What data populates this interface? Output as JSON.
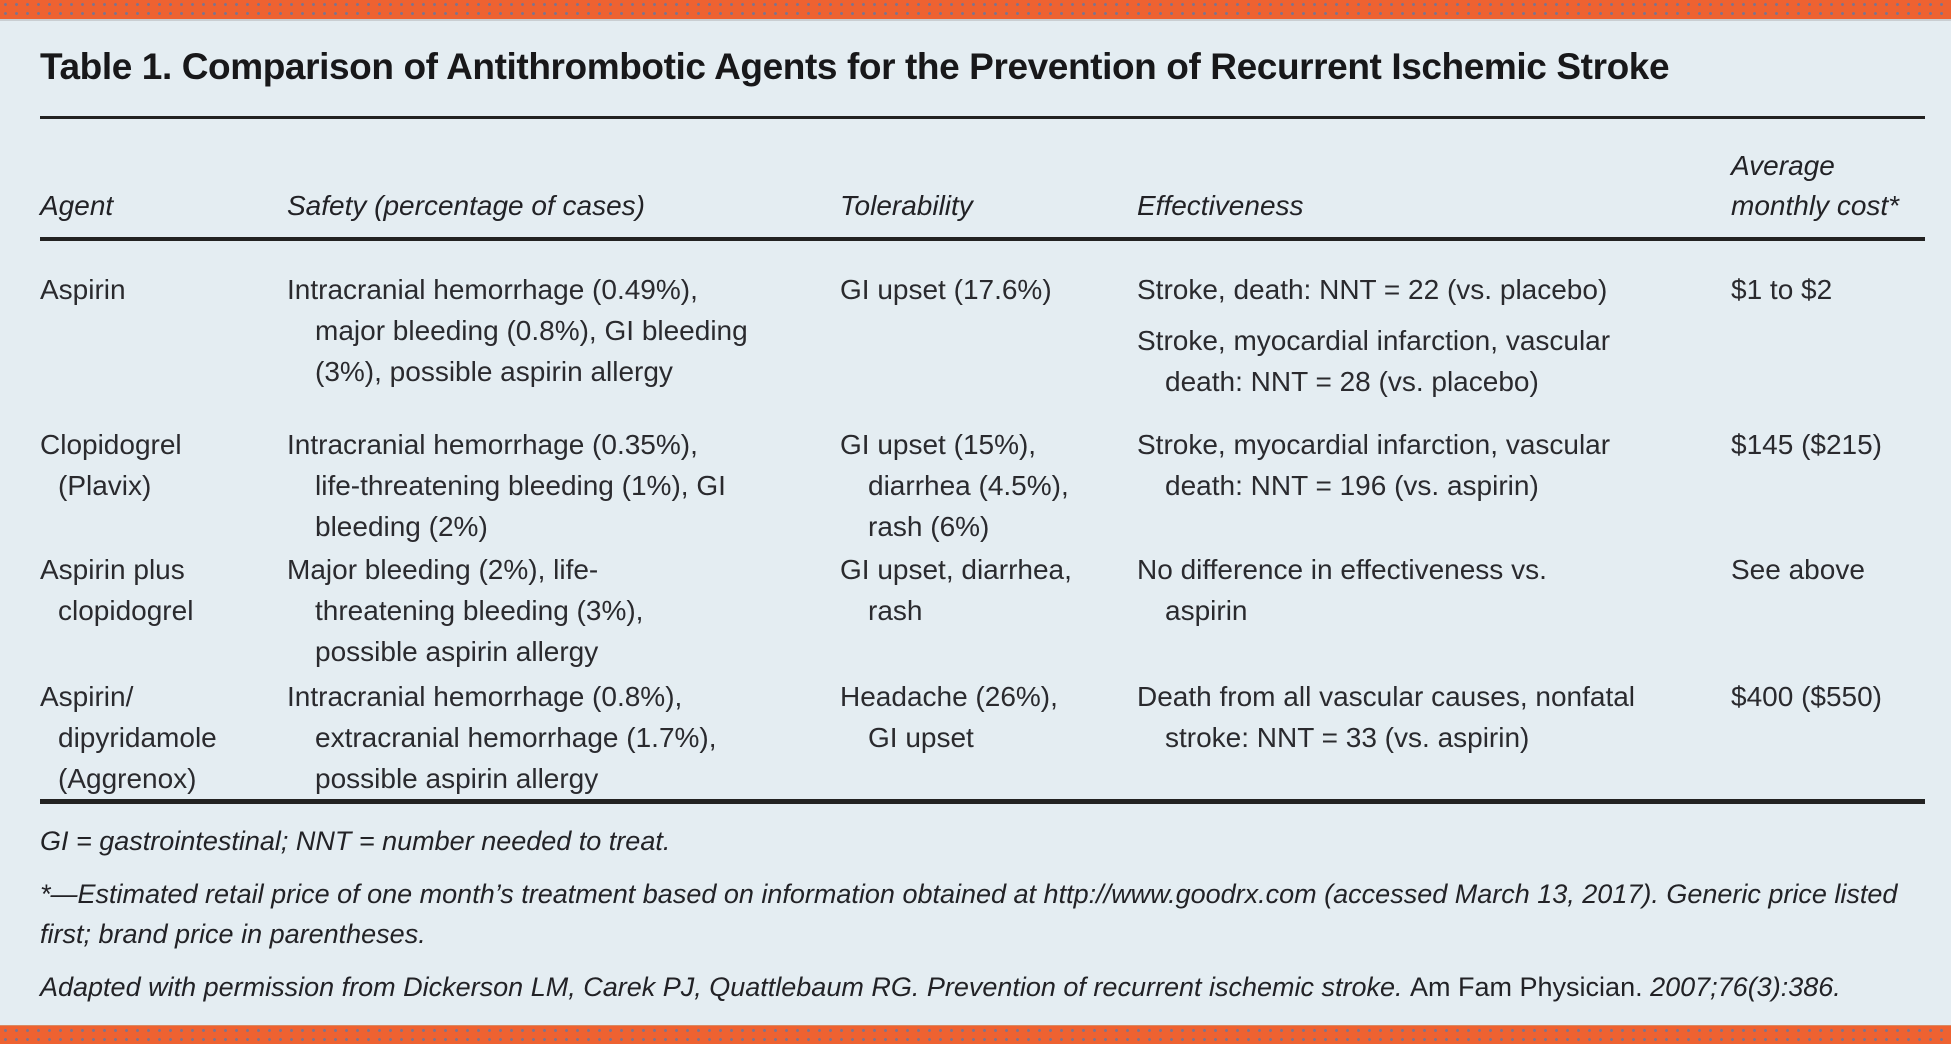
{
  "theme": {
    "background": "#e4edf2",
    "accent": "#ee6231",
    "rule_color": "#222222",
    "text_color": "#2a2a2e"
  },
  "title": "Table 1. Comparison of Antithrombotic Agents for the Prevention of Recurrent Ischemic Stroke",
  "table": {
    "columns": [
      {
        "id": "agent",
        "lines": [
          "Agent"
        ]
      },
      {
        "id": "safety",
        "lines": [
          "Safety (percentage of cases)"
        ]
      },
      {
        "id": "tolerability",
        "lines": [
          "Tolerability"
        ]
      },
      {
        "id": "effectiveness",
        "lines": [
          "Effectiveness"
        ]
      },
      {
        "id": "cost",
        "lines": [
          "Average",
          "monthly cost*"
        ]
      }
    ],
    "rows": [
      {
        "agent": [
          [
            "Aspirin"
          ]
        ],
        "safety": [
          [
            "Intracranial hemorrhage (0.49%),",
            "major bleeding (0.8%), GI bleeding",
            "(3%), possible aspirin allergy"
          ]
        ],
        "tolerability": [
          [
            "GI upset (17.6%)"
          ]
        ],
        "effectiveness": [
          [
            "Stroke, death: NNT = 22 (vs. placebo)"
          ],
          [
            "Stroke, myocardial infarction, vascular",
            "death: NNT = 28 (vs. placebo)"
          ]
        ],
        "cost": [
          [
            "$1 to $2"
          ]
        ]
      },
      {
        "agent": [
          [
            "Clopidogrel",
            "(Plavix)"
          ]
        ],
        "safety": [
          [
            "Intracranial hemorrhage (0.35%),",
            "life-threatening bleeding (1%), GI",
            "bleeding (2%)"
          ]
        ],
        "tolerability": [
          [
            "GI upset (15%),",
            "diarrhea (4.5%),",
            "rash (6%)"
          ]
        ],
        "effectiveness": [
          [
            "Stroke, myocardial infarction, vascular",
            "death: NNT = 196 (vs. aspirin)"
          ]
        ],
        "cost": [
          [
            "$145 ($215)"
          ]
        ]
      },
      {
        "agent": [
          [
            "Aspirin plus",
            "clopidogrel"
          ]
        ],
        "safety": [
          [
            "Major bleeding (2%), life-",
            "threatening bleeding (3%),",
            "possible aspirin allergy"
          ]
        ],
        "tolerability": [
          [
            "GI upset, diarrhea,",
            "rash"
          ]
        ],
        "effectiveness": [
          [
            "No difference in effectiveness vs.",
            "aspirin"
          ]
        ],
        "cost": [
          [
            "See above"
          ]
        ]
      },
      {
        "agent": [
          [
            "Aspirin/",
            "dipyridamole",
            "(Aggrenox)"
          ]
        ],
        "safety": [
          [
            "Intracranial hemorrhage (0.8%),",
            "extracranial hemorrhage (1.7%),",
            "possible aspirin allergy"
          ]
        ],
        "tolerability": [
          [
            "Headache (26%),",
            "GI upset"
          ]
        ],
        "effectiveness": [
          [
            "Death from all vascular causes, nonfatal",
            "stroke: NNT = 33 (vs. aspirin)"
          ]
        ],
        "cost": [
          [
            "$400 ($550)"
          ]
        ]
      }
    ]
  },
  "footnotes": [
    {
      "segments": [
        {
          "text": "GI = gastrointestinal; NNT = number needed to treat.",
          "italic": true
        }
      ]
    },
    {
      "segments": [
        {
          "text": "*—Estimated retail price of one month’s treatment based on information obtained at http://www.goodrx.com (accessed March 13, 2017). Generic price listed first; brand price in parentheses.",
          "italic": true
        }
      ]
    },
    {
      "segments": [
        {
          "text": "Adapted with permission from Dickerson LM, Carek PJ, Quattlebaum RG. Prevention of recurrent ischemic stroke. ",
          "italic": true
        },
        {
          "text": "Am Fam Physician.",
          "italic": false
        },
        {
          "text": " 2007;76(3):386.",
          "italic": true
        }
      ]
    }
  ]
}
